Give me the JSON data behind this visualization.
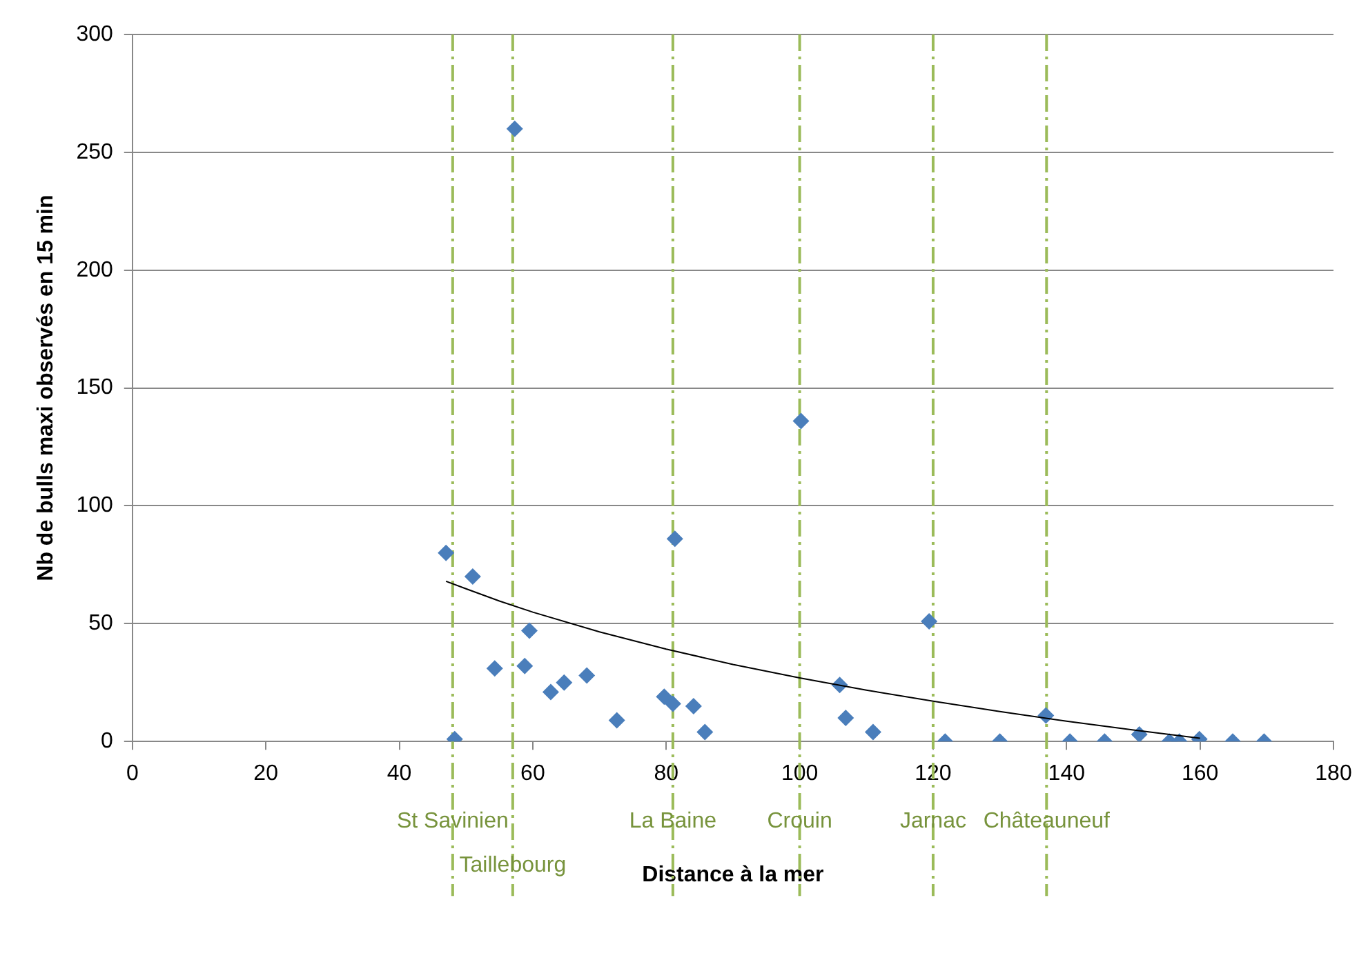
{
  "chart_data": {
    "type": "scatter",
    "xlabel": "Distance à la mer",
    "ylabel": "Nb de bulls maxi observés en 15 min",
    "xlim": [
      0,
      180
    ],
    "xticks": [
      0,
      20,
      40,
      60,
      80,
      100,
      120,
      140,
      160,
      180
    ],
    "ylim": [
      0,
      300
    ],
    "yticks": [
      0,
      50,
      100,
      150,
      200,
      250,
      300
    ],
    "grid": "y",
    "legend": false,
    "marker": "diamond",
    "series": [
      {
        "color": "#4a7ebb",
        "x": [
          47,
          48.3,
          51,
          54.3,
          57.3,
          58.8,
          59.5,
          62.7,
          64.7,
          68.1,
          72.6,
          79.7,
          81,
          81.3,
          84.1,
          85.8,
          100.2,
          106,
          106.9,
          111,
          119.4,
          121.8,
          130,
          136.9,
          140.5,
          145.7,
          150.9,
          155.4,
          156.9,
          159.9,
          164.9,
          169.6
        ],
        "values": [
          80,
          1,
          70,
          31,
          260,
          32,
          47,
          21,
          25,
          28,
          9,
          19,
          16,
          86,
          15,
          4,
          136,
          24,
          10,
          4,
          51,
          0,
          0,
          11,
          0,
          0,
          3,
          0,
          0,
          1,
          0,
          0
        ]
      },
      {
        "type": "line",
        "color": "#000000",
        "marker": "none",
        "x": [
          47,
          50,
          55,
          60,
          70,
          80,
          90,
          100,
          110,
          120,
          130,
          140,
          150,
          160
        ],
        "values": [
          68,
          64.8,
          59.6,
          54.9,
          46.5,
          39.2,
          32.7,
          27,
          21.8,
          17.1,
          12.7,
          8.6,
          4.9,
          1.4
        ]
      }
    ],
    "ref_lines": [
      {
        "axis": "x",
        "value": 48,
        "label": "St Savinien",
        "color": "#9bbb59",
        "line_style": "dashed"
      },
      {
        "axis": "x",
        "value": 57,
        "label": "Taillebourg",
        "color": "#9bbb59",
        "line_style": "dashed"
      },
      {
        "axis": "x",
        "value": 81,
        "label": "La Baine",
        "color": "#9bbb59",
        "line_style": "dashed"
      },
      {
        "axis": "x",
        "value": 100,
        "label": "Crouin",
        "color": "#9bbb59",
        "line_style": "dashed"
      },
      {
        "axis": "x",
        "value": 120,
        "label": "Jarnac",
        "color": "#9bbb59",
        "line_style": "dashed"
      },
      {
        "axis": "x",
        "value": 137,
        "label": "Châteauneuf",
        "color": "#9bbb59",
        "line_style": "dashed"
      }
    ]
  }
}
